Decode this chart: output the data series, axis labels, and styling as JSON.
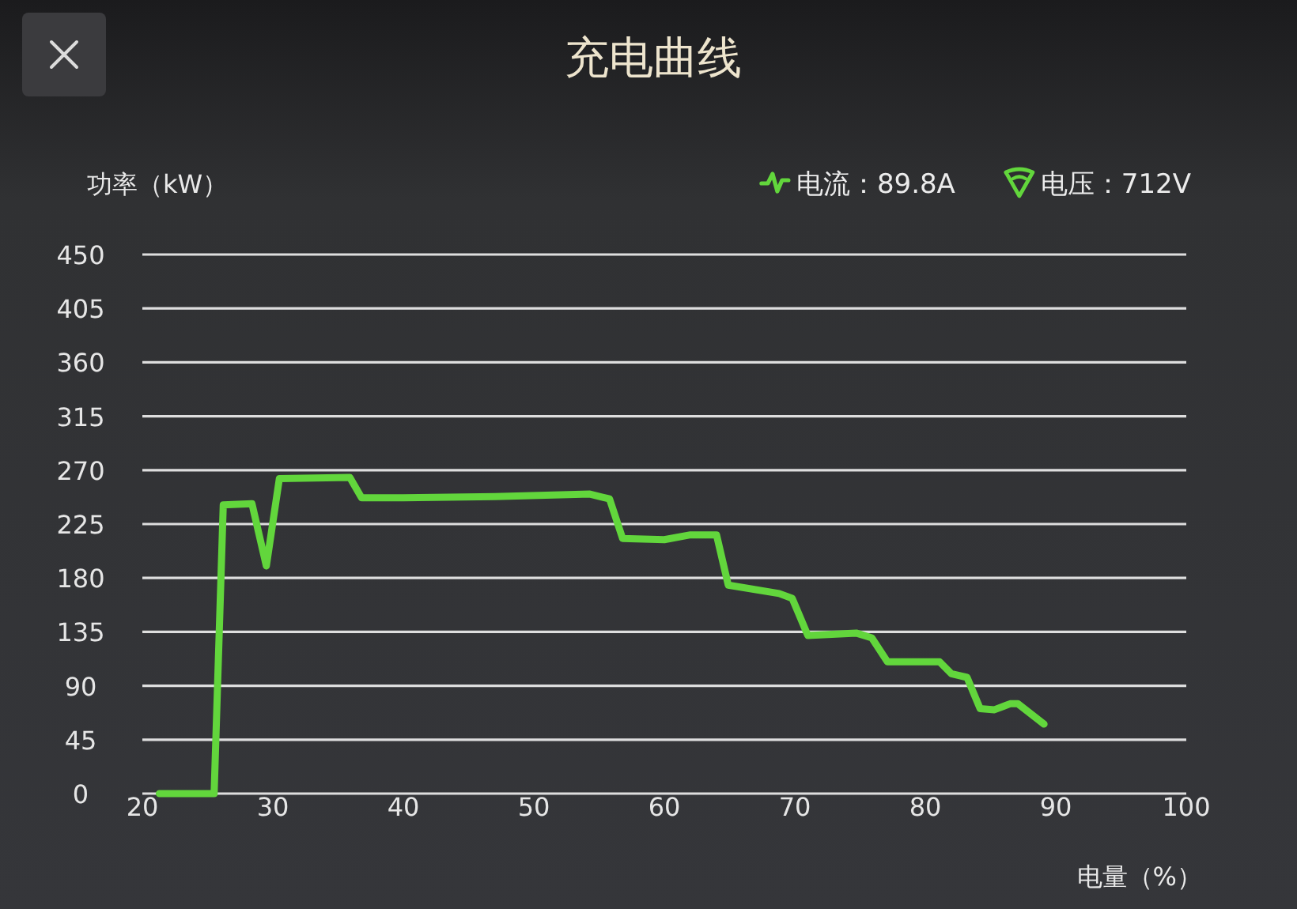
{
  "chart_data": {
    "type": "line",
    "title": "充电曲线",
    "ylabel": "功率（kW）",
    "xlabel": "电量（%）",
    "annotations": [
      "电流：89.8A",
      "电压：712V"
    ],
    "x": [
      21.3,
      25.5,
      26.2,
      28.4,
      29.5,
      30.5,
      35.9,
      36.8,
      40,
      47,
      54.3,
      55.8,
      56.8,
      60,
      62,
      64,
      64.9,
      68.8,
      69.8,
      71,
      74.7,
      75.9,
      77.1,
      81.1,
      82,
      83.2,
      84.2,
      85.3,
      86.5,
      87.1,
      89.1
    ],
    "values": [
      0,
      0,
      241,
      242,
      190,
      263,
      264,
      247,
      247,
      248,
      250,
      246,
      213,
      212,
      216,
      216,
      174,
      167,
      163,
      132,
      134,
      130,
      110,
      110,
      100,
      97,
      71,
      70,
      75,
      75,
      58
    ],
    "color": "#62d63c",
    "xlim": [
      20,
      100
    ],
    "ylim": [
      0,
      450
    ],
    "xticks": [
      20,
      30,
      40,
      50,
      60,
      70,
      80,
      90,
      100
    ],
    "yticks": [
      0,
      45,
      90,
      135,
      180,
      225,
      270,
      315,
      360,
      405,
      450
    ],
    "grid": "y"
  }
}
